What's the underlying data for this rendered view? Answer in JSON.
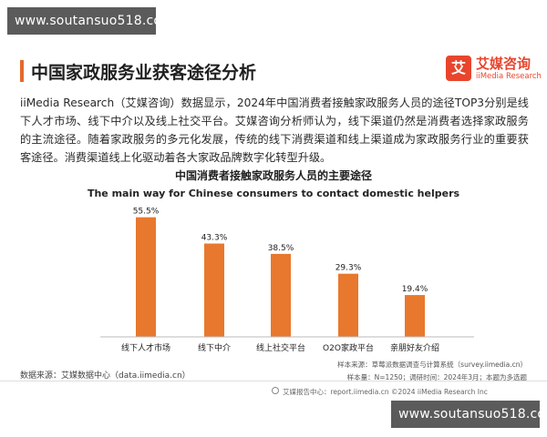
{
  "watermark": "www.soutansuo518.com",
  "header": {
    "title": "中国家政服务业获客途径分析"
  },
  "logo": {
    "mark": "艾",
    "name": "艾媒咨询",
    "sub": "iiMedia Research"
  },
  "paragraph": "iiMedia Research（艾媒咨询）数据显示，2024年中国消费者接触家政服务人员的途径TOP3分别是线下人才市场、线下中介以及线上社交平台。艾媒咨询分析师认为，线下渠道仍然是消费者选择家政服务的主流途径。随着家政服务的多元化发展，传统的线下消费渠道和线上渠道成为家政服务行业的重要获客途径。消费渠道线上化驱动着各大家政品牌数字化转型升级。",
  "sample_info": {
    "line1": "样本来源：草莓派数据调查与计算系统（survey.iimedia.cn）",
    "line2": "样本量：N=1250；调研时间：2024年3月；本题为多选题"
  },
  "source": "数据来源：艾媒数据中心（data.iimedia.cn）",
  "footer": "艾媒报告中心：report.iimedia.cn  ©2024  iiMedia Research Inc",
  "chart_data": {
    "type": "bar",
    "title": "中国消费者接触家政服务人员的主要途径",
    "subtitle": "The main way for Chinese consumers to contact domestic helpers",
    "categories": [
      "线下人才市场",
      "线下中介",
      "线上社交平台",
      "O2O家政平台",
      "亲朋好友介绍"
    ],
    "values": [
      55.5,
      43.3,
      38.5,
      29.3,
      19.4
    ],
    "value_labels": [
      "55.5%",
      "43.3%",
      "38.5%",
      "29.3%",
      "19.4%"
    ],
    "ylim": [
      0,
      60
    ],
    "bar_color": "#e8782d",
    "grid": false,
    "legend": "none"
  }
}
